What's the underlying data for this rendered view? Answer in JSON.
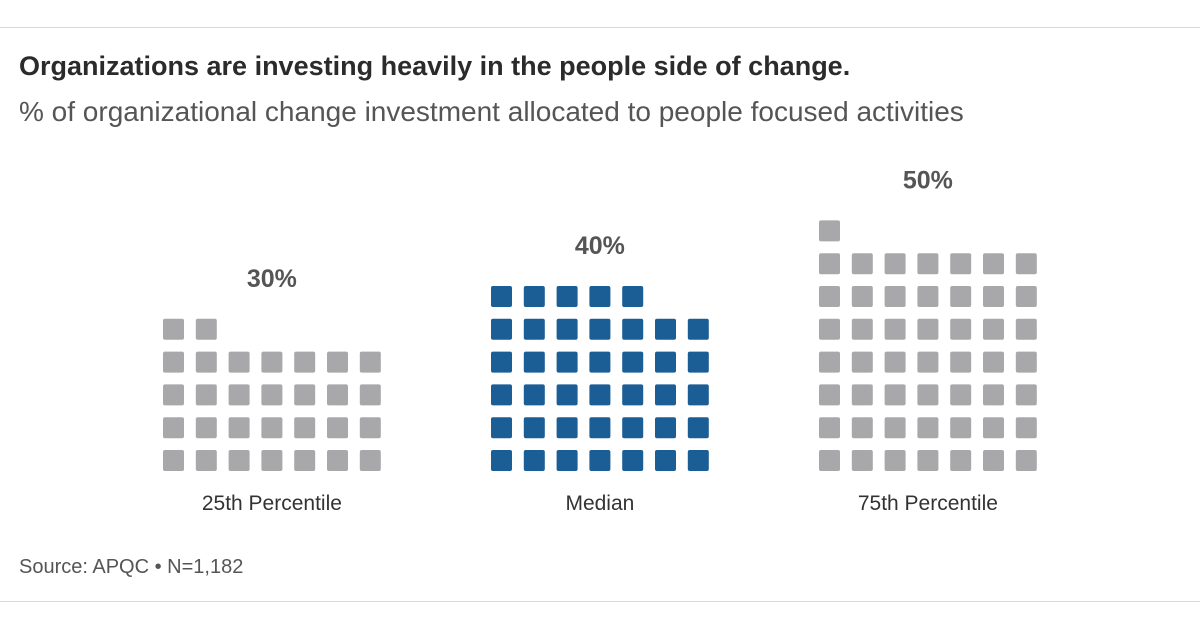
{
  "title": "Organizations are investing heavily in the people side of change.",
  "subtitle": "% of organizational change investment allocated to people focused activities",
  "source": "Source: APQC • N=1,182",
  "colors": {
    "inactive": "#a8a8ab",
    "highlight": "#1b5e96",
    "text": "#333333",
    "value_text": "#555555",
    "rule": "#d9d9d9"
  },
  "chart_data": {
    "type": "waffle",
    "categories": [
      "25th Percentile",
      "Median",
      "75th Percentile"
    ],
    "values": [
      30,
      40,
      50
    ],
    "value_labels": [
      "30%",
      "40%",
      "50%"
    ],
    "highlight": "Median",
    "units_per_square": 1,
    "columns_per_group": 7
  }
}
